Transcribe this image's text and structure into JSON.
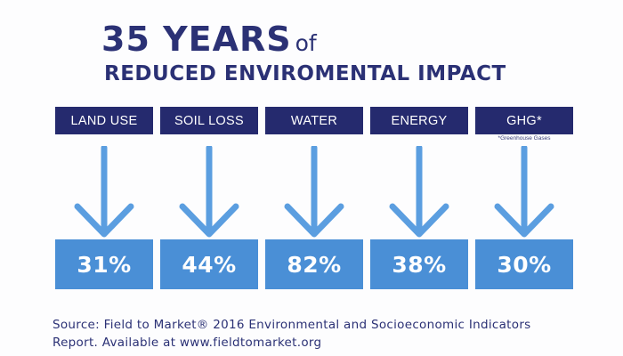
{
  "title": {
    "big": "35 YEARS",
    "small": "of",
    "subtitle": "REDUCED ENVIROMENTAL IMPACT"
  },
  "indicators": [
    {
      "label": "LAND USE",
      "value": "31%",
      "footnote": ""
    },
    {
      "label": "SOIL LOSS",
      "value": "44%",
      "footnote": ""
    },
    {
      "label": "WATER",
      "value": "82%",
      "footnote": ""
    },
    {
      "label": "ENERGY",
      "value": "38%",
      "footnote": ""
    },
    {
      "label": "GHG*",
      "value": "30%",
      "footnote": "*Greenhouse Gases"
    }
  ],
  "source": {
    "line1": "Source: Field to Market® 2016 Environmental and Socioeconomic Indicators",
    "line2": "Report. Available at www.fieldtomarket.org"
  },
  "colors": {
    "navy": "#252a6e",
    "title": "#2b3175",
    "arrow": "#5b9ee0",
    "value_box": "#4a8fd6"
  }
}
